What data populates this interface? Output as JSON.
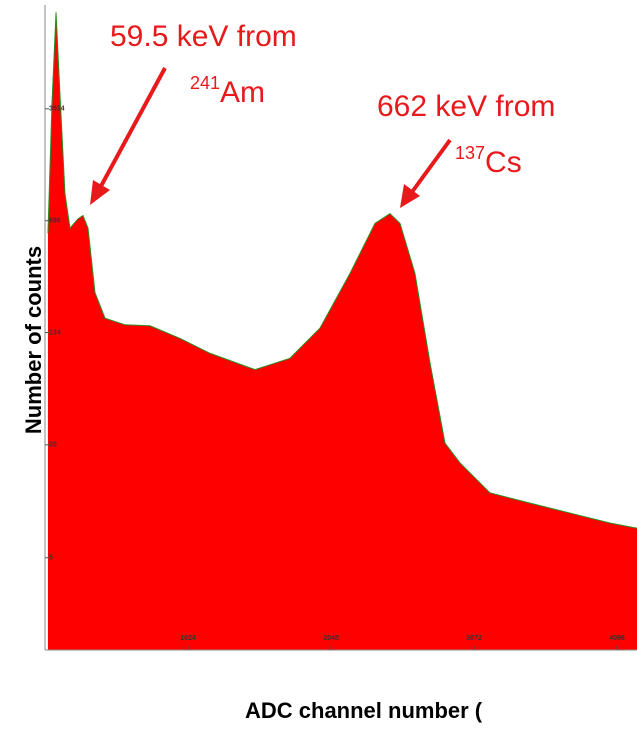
{
  "chart_data": {
    "type": "area",
    "y_label": "Number of counts",
    "x_label": "ADC channel number (",
    "x": [
      21,
      50,
      79,
      107,
      143,
      179,
      236,
      272,
      308,
      358,
      430,
      573,
      752,
      967,
      1181,
      1468,
      1504,
      1754,
      1969,
      2184,
      2363,
      2470,
      2542,
      2649,
      2757,
      2864,
      2971,
      3186,
      3473,
      3759,
      4045,
      4239
    ],
    "values": [
      570,
      3800,
      14400,
      4380,
      1020,
      615,
      705,
      740,
      615,
      240,
      165,
      150,
      148,
      123,
      99,
      80,
      78,
      92,
      143,
      318,
      660,
      760,
      660,
      318,
      86,
      26.7,
      20,
      12.9,
      11.1,
      9.6,
      8.3,
      7.7
    ],
    "color": "#ff0000",
    "edge_color": "#2e8b1e",
    "xlim": [
      0,
      4239
    ],
    "xticks": [
      1024,
      2048,
      3072,
      4096
    ],
    "ylim": [
      1.3,
      16000
    ],
    "yticks": [
      5,
      26,
      134,
      686,
      3514
    ],
    "log_y": true,
    "annotations": [
      {
        "text": "59.5 keV from",
        "mass": "241",
        "symbol": "Am"
      },
      {
        "text": "662 keV from",
        "mass": "137",
        "symbol": "Cs"
      }
    ]
  }
}
